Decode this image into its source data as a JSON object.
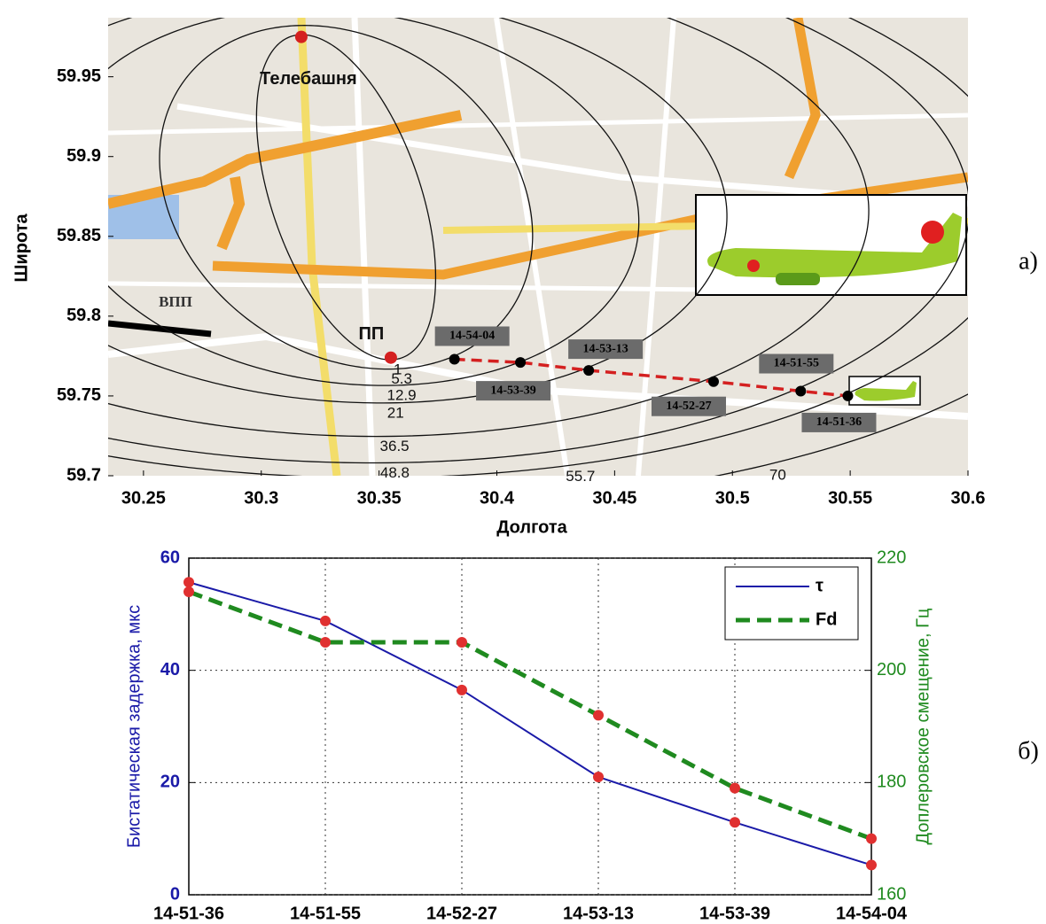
{
  "chart_data": [
    {
      "type": "map",
      "panel_label": "а)",
      "xlabel": "Долгота",
      "ylabel": "Широта",
      "xlim": [
        30.235,
        30.6
      ],
      "ylim": [
        59.7,
        59.987
      ],
      "xticks": [
        30.25,
        30.3,
        30.35,
        30.4,
        30.45,
        30.5,
        30.55,
        30.6
      ],
      "yticks": [
        59.7,
        59.75,
        59.8,
        59.85,
        59.9,
        59.95
      ],
      "contour_levels": [
        1,
        5.3,
        12.9,
        21,
        36.5,
        48.8,
        55.7,
        70
      ],
      "landmarks": [
        {
          "label": "Телебашня",
          "x": 30.317,
          "y": 59.975,
          "color": "#d42020"
        },
        {
          "label": "ПП",
          "x": 30.355,
          "y": 59.774,
          "color": "#d42020"
        }
      ],
      "track": {
        "x": [
          30.382,
          30.41,
          30.439,
          30.492,
          30.529,
          30.549
        ],
        "y": [
          59.773,
          59.771,
          59.766,
          59.759,
          59.753,
          59.75
        ],
        "labels": [
          "14-54-04",
          "14-53-39",
          "14-53-13",
          "14-52-27",
          "14-51-55",
          "14-51-36"
        ],
        "color": "#d42020"
      },
      "annotations": [
        "ВПП"
      ]
    },
    {
      "type": "line",
      "panel_label": "б)",
      "categories": [
        "14-51-36",
        "14-51-55",
        "14-52-27",
        "14-53-13",
        "14-53-39",
        "14-54-04"
      ],
      "ylabel": "Бистатическая задержка, мкс",
      "y2label": "Доплеровское смещение, Гц",
      "ylim": [
        0,
        60
      ],
      "yticks": [
        0,
        20,
        40,
        60
      ],
      "y2lim": [
        160,
        220
      ],
      "y2ticks": [
        160,
        180,
        200,
        220
      ],
      "grid": true,
      "legend": "upper right",
      "marker_color": "#e03030",
      "series": [
        {
          "name": "τ",
          "color": "#1a1aa8",
          "values": [
            55.7,
            48.8,
            36.5,
            21,
            12.9,
            5.3
          ]
        },
        {
          "name": "Fd",
          "color": "#1f8a1f",
          "axis": "y2",
          "dashed": true,
          "values": [
            214,
            205,
            205,
            192,
            179,
            170
          ]
        }
      ]
    }
  ]
}
